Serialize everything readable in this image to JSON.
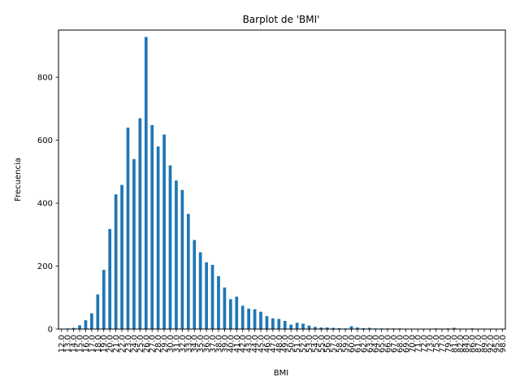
{
  "chart_data": {
    "type": "bar",
    "title": "Barplot de 'BMI'",
    "xlabel": "BMI",
    "ylabel": "Frecuencia",
    "ylim": [
      0,
      950
    ],
    "yticks": [
      0,
      200,
      400,
      600,
      800
    ],
    "grid": false,
    "legend": "none",
    "bar_color": "#1f77b4",
    "categories": [
      "12.0",
      "13.0",
      "14.0",
      "15.0",
      "16.0",
      "17.0",
      "18.0",
      "19.0",
      "20.0",
      "21.0",
      "22.0",
      "23.0",
      "24.0",
      "25.0",
      "26.0",
      "27.0",
      "28.0",
      "29.0",
      "30.0",
      "31.0",
      "32.0",
      "33.0",
      "34.0",
      "35.0",
      "36.0",
      "37.0",
      "38.0",
      "39.0",
      "40.0",
      "41.0",
      "42.0",
      "43.0",
      "44.0",
      "45.0",
      "46.0",
      "47.0",
      "48.0",
      "49.0",
      "50.0",
      "51.0",
      "52.0",
      "53.0",
      "54.0",
      "55.0",
      "56.0",
      "57.0",
      "58.0",
      "59.0",
      "60.0",
      "61.0",
      "62.0",
      "63.0",
      "64.0",
      "65.0",
      "66.0",
      "67.0",
      "68.0",
      "69.0",
      "70.0",
      "71.0",
      "72.0",
      "73.0",
      "75.0",
      "77.0",
      "79.0",
      "81.0",
      "82.0",
      "84.0",
      "86.0",
      "87.0",
      "89.0",
      "92.0",
      "95.0",
      "98.0"
    ],
    "values": [
      1,
      2,
      4,
      12,
      28,
      50,
      110,
      188,
      318,
      428,
      458,
      640,
      540,
      670,
      928,
      648,
      580,
      618,
      520,
      472,
      442,
      366,
      283,
      244,
      212,
      204,
      168,
      132,
      95,
      103,
      74,
      65,
      63,
      55,
      41,
      34,
      32,
      26,
      14,
      20,
      17,
      11,
      7,
      5,
      5,
      4,
      3,
      2,
      9,
      5,
      3,
      4,
      2,
      2,
      2,
      2,
      2,
      1,
      1,
      1,
      1,
      1,
      2,
      1,
      2,
      4,
      1,
      1,
      2,
      1,
      1,
      1,
      1,
      1
    ]
  }
}
